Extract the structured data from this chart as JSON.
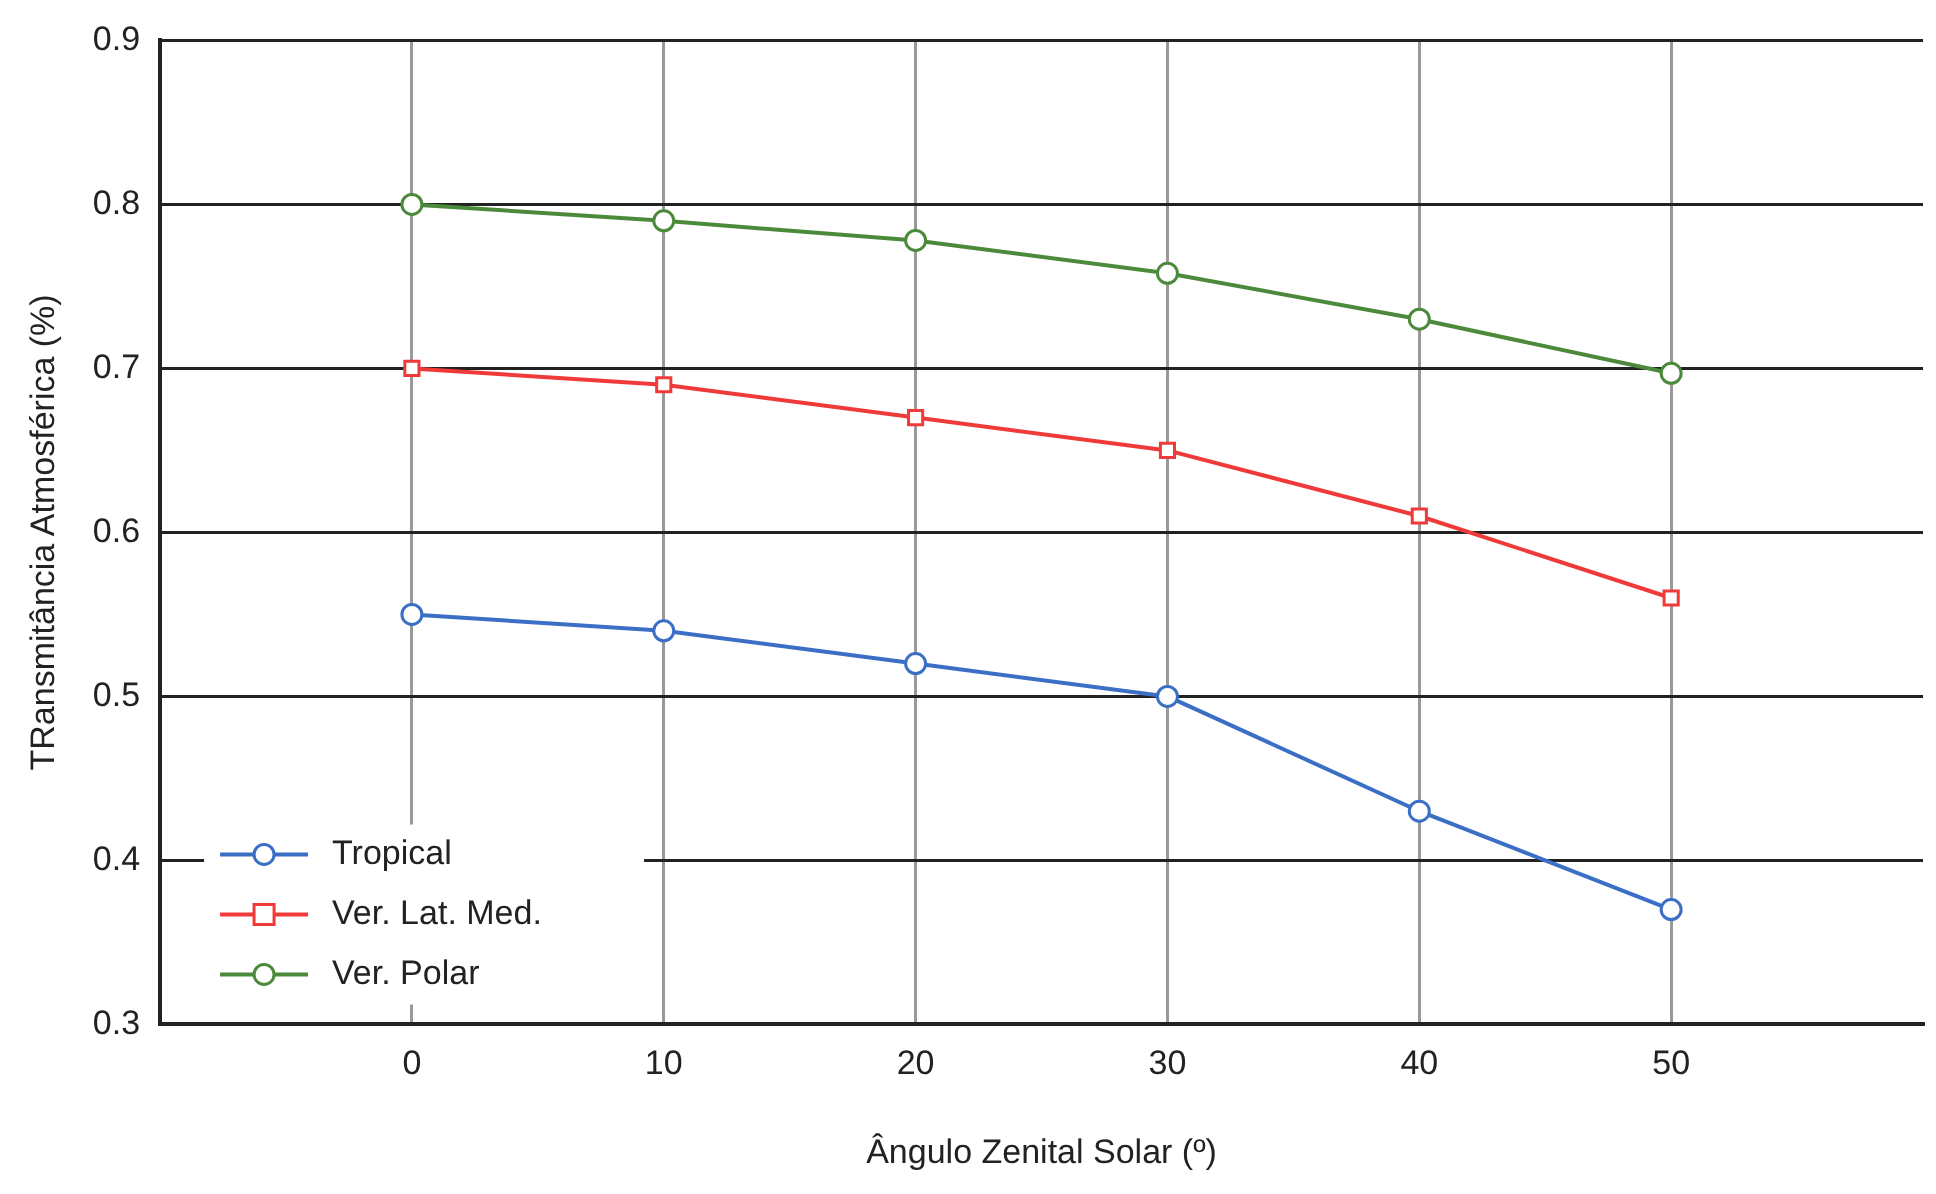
{
  "chart_data": {
    "type": "line",
    "xlabel": "Ângulo Zenital Solar (º)",
    "ylabel": "TRansmitância Atmosférica (%)",
    "x": [
      0,
      10,
      20,
      30,
      40,
      50
    ],
    "xlim": [
      -10,
      60
    ],
    "xticks": [
      0,
      10,
      20,
      30,
      40,
      50
    ],
    "ylim": [
      0.3,
      0.9
    ],
    "yticks": [
      0.3,
      0.4,
      0.5,
      0.6,
      0.7,
      0.8,
      0.9
    ],
    "grid": true,
    "legend": "bottom left",
    "line_style": "solid",
    "series": [
      {
        "name": "Tropical",
        "color": "#3b6fc6",
        "marker": "circle",
        "values": [
          0.55,
          0.54,
          0.52,
          0.5,
          0.43,
          0.37
        ]
      },
      {
        "name": "Ver. Lat. Med.",
        "color": "#f03a3a",
        "marker": "square",
        "values": [
          0.7,
          0.69,
          0.67,
          0.65,
          0.61,
          0.56
        ]
      },
      {
        "name": "Ver. Polar",
        "color": "#4b8a3b",
        "marker": "circle",
        "values": [
          0.8,
          0.79,
          0.778,
          0.758,
          0.73,
          0.697
        ]
      }
    ]
  }
}
